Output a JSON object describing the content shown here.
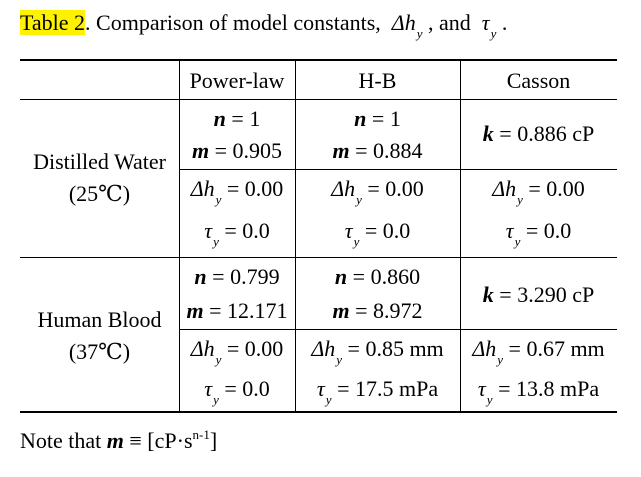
{
  "caption": {
    "label": "Table 2",
    "text": ". Comparison of model constants,",
    "dh_symbol": "Δh",
    "sub": "y",
    "and": ", and",
    "tau": "τ",
    "end": "."
  },
  "headers": [
    "Power-law",
    "H-B",
    "Casson"
  ],
  "rows": [
    {
      "label_line1": "Distilled Water",
      "label_line2": "(25℃)",
      "powerlaw": {
        "n_val": "= 1",
        "m_val": "= 0.905",
        "dh_val": "= 0.00",
        "tau_val": "= 0.0"
      },
      "hb": {
        "n_val": "= 1",
        "m_val": "= 0.884",
        "dh_val": "= 0.00",
        "tau_val": "= 0.0"
      },
      "casson": {
        "k_val": "= 0.886 cP",
        "dh_val": "= 0.00",
        "tau_val": "= 0.0"
      }
    },
    {
      "label_line1": "Human Blood",
      "label_line2": "(37℃)",
      "powerlaw": {
        "n_val": "= 0.799",
        "m_val": "= 12.171",
        "dh_val": "= 0.00",
        "tau_val": "= 0.0"
      },
      "hb": {
        "n_val": "= 0.860",
        "m_val": "= 8.972",
        "dh_val": "= 0.85 mm",
        "tau_val": "= 17.5 mPa"
      },
      "casson": {
        "k_val": "= 3.290 cP",
        "dh_val": "= 0.67 mm",
        "tau_val": "= 13.8 mPa"
      }
    }
  ],
  "symbols": {
    "n": "n",
    "m": "m",
    "k": "k",
    "dh": "Δh",
    "tau": "τ",
    "sub": "y"
  },
  "note": {
    "prefix": "Note that",
    "m": "m",
    "rest": "≡ [cP·s",
    "exp": "n-1",
    "close": "]"
  }
}
